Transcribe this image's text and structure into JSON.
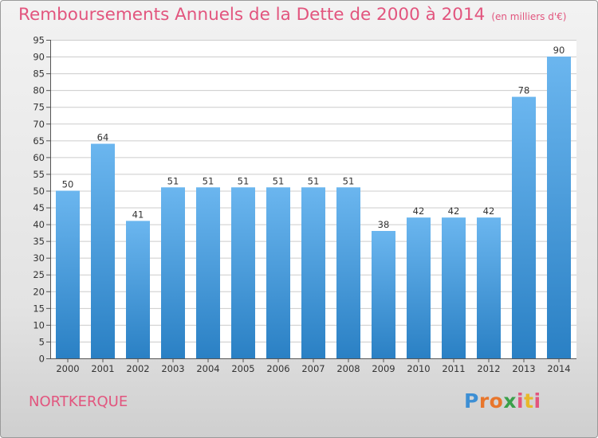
{
  "title": "Remboursements Annuels de la Dette de 2000 à 2014",
  "unit_label": "(en milliers d'€)",
  "commune": "NORTKERQUE",
  "logo": {
    "text": "Proxiti",
    "colors": [
      "#3d8fd4",
      "#e8762c",
      "#e8762c",
      "#3aa04a",
      "#e2557e",
      "#e8b82a",
      "#e2557e"
    ]
  },
  "colors": {
    "bar_light": "#6bb6ef",
    "bar_dark": "#2a80c4",
    "title": "#e2557e",
    "grid": "#cccccc"
  },
  "chart_data": {
    "type": "bar",
    "categories": [
      "2000",
      "2001",
      "2002",
      "2003",
      "2004",
      "2005",
      "2006",
      "2007",
      "2008",
      "2009",
      "2010",
      "2011",
      "2012",
      "2013",
      "2014"
    ],
    "values": [
      50,
      64,
      41,
      51,
      51,
      51,
      51,
      51,
      51,
      38,
      42,
      42,
      42,
      78,
      90
    ],
    "ylim": [
      0,
      95
    ],
    "ytick_step": 5,
    "grid": true,
    "data_labels": true
  }
}
